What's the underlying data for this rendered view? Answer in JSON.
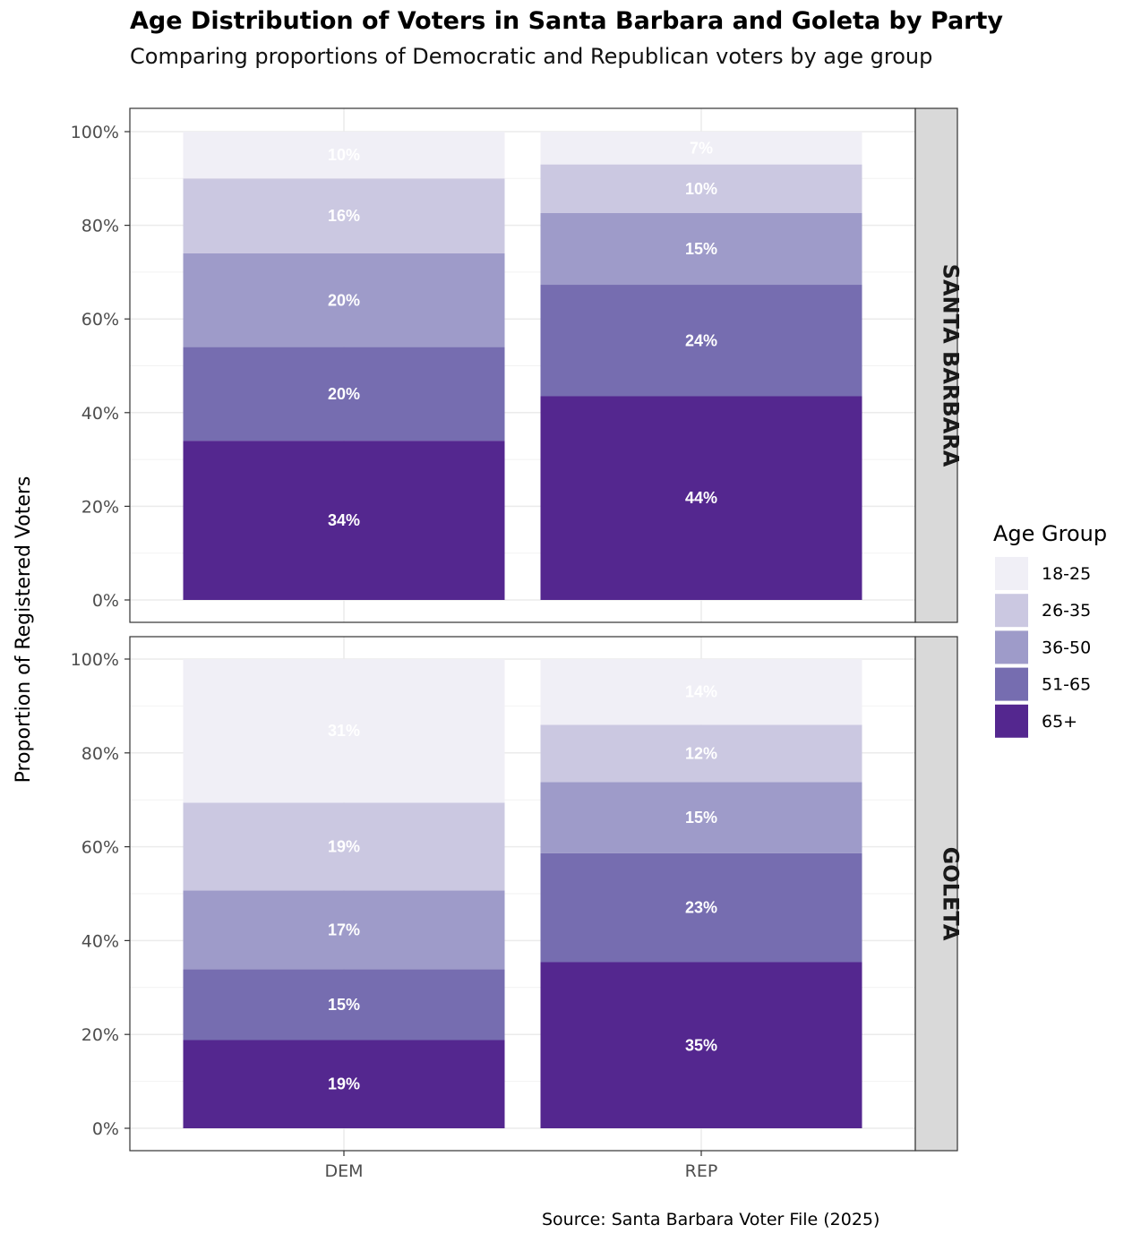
{
  "chart_data": {
    "type": "bar",
    "stacked": true,
    "title": "Age Distribution of Voters in Santa Barbara and Goleta by Party",
    "subtitle": "Comparing proportions of Democratic and Republican voters by age group",
    "ylabel": "Proportion of Registered Voters",
    "caption": "Source: Santa Barbara Voter File (2025)",
    "categories": [
      "DEM",
      "REP"
    ],
    "y_ticks": [
      "0%",
      "20%",
      "40%",
      "60%",
      "80%",
      "100%"
    ],
    "ylim": [
      0,
      1
    ],
    "legend": {
      "title": "Age Group",
      "placement": "right",
      "entries": [
        "18-25",
        "26-35",
        "36-50",
        "51-65",
        "65+"
      ]
    },
    "colors": {
      "18-25": "#f0eff6",
      "26-35": "#cbc8e1",
      "36-50": "#9e9bc9",
      "51-65": "#766db0",
      "65+": "#54278f"
    },
    "facets": [
      {
        "name": "SANTA BARBARA",
        "bars": [
          {
            "category": "DEM",
            "segments": [
              {
                "group": "65+",
                "value": 0.34,
                "label": "34%"
              },
              {
                "group": "51-65",
                "value": 0.2,
                "label": "20%"
              },
              {
                "group": "36-50",
                "value": 0.2,
                "label": "20%"
              },
              {
                "group": "26-35",
                "value": 0.16,
                "label": "16%"
              },
              {
                "group": "18-25",
                "value": 0.1,
                "label": "10%"
              }
            ]
          },
          {
            "category": "REP",
            "segments": [
              {
                "group": "65+",
                "value": 0.435,
                "label": "44%"
              },
              {
                "group": "51-65",
                "value": 0.238,
                "label": "24%"
              },
              {
                "group": "36-50",
                "value": 0.153,
                "label": "15%"
              },
              {
                "group": "26-35",
                "value": 0.104,
                "label": "10%"
              },
              {
                "group": "18-25",
                "value": 0.07,
                "label": "7%"
              }
            ]
          }
        ]
      },
      {
        "name": "GOLETA",
        "bars": [
          {
            "category": "DEM",
            "segments": [
              {
                "group": "65+",
                "value": 0.188,
                "label": "19%"
              },
              {
                "group": "51-65",
                "value": 0.151,
                "label": "15%"
              },
              {
                "group": "36-50",
                "value": 0.168,
                "label": "17%"
              },
              {
                "group": "26-35",
                "value": 0.187,
                "label": "19%"
              },
              {
                "group": "18-25",
                "value": 0.306,
                "label": "31%"
              }
            ]
          },
          {
            "category": "REP",
            "segments": [
              {
                "group": "65+",
                "value": 0.354,
                "label": "35%"
              },
              {
                "group": "51-65",
                "value": 0.232,
                "label": "23%"
              },
              {
                "group": "36-50",
                "value": 0.152,
                "label": "15%"
              },
              {
                "group": "26-35",
                "value": 0.122,
                "label": "12%"
              },
              {
                "group": "18-25",
                "value": 0.14,
                "label": "14%"
              }
            ]
          }
        ]
      }
    ]
  }
}
